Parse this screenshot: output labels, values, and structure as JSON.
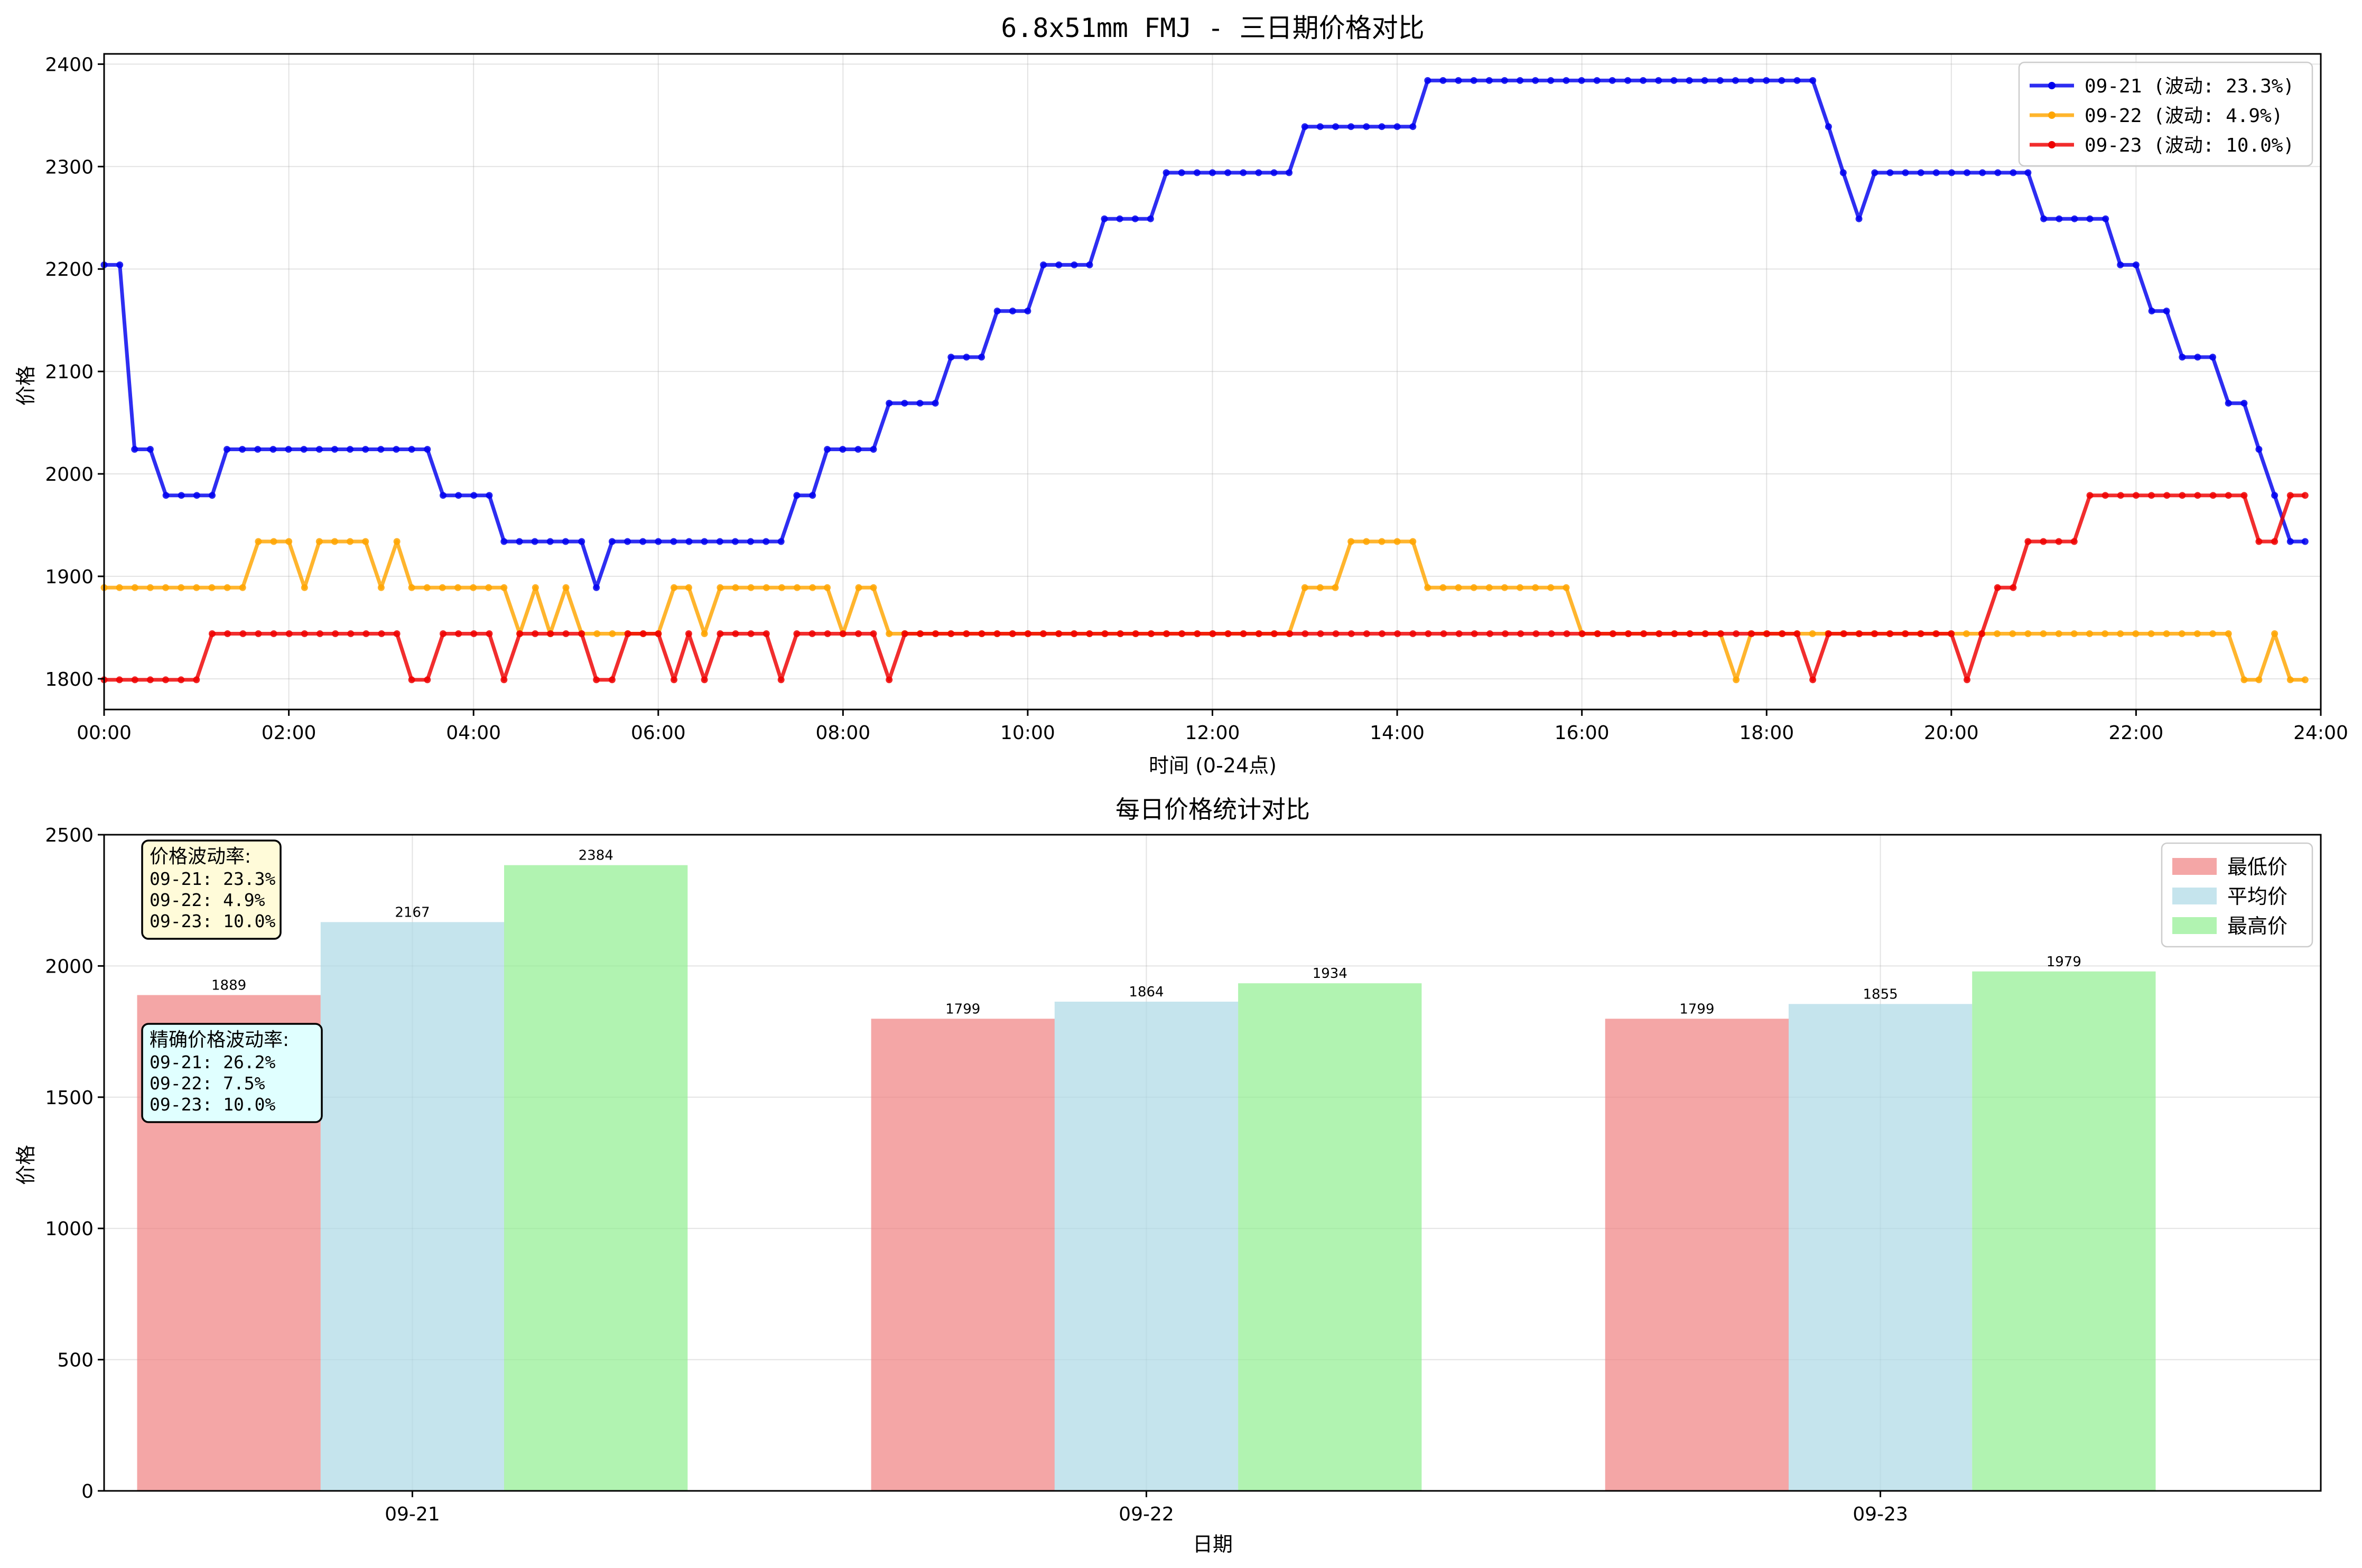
{
  "chart_data": [
    {
      "type": "line",
      "title": "6.8x51mm FMJ - 三日期价格对比",
      "xlabel": "时间 (0-24点)",
      "ylabel": "价格",
      "xlim": [
        0,
        24
      ],
      "ylim": [
        1770,
        2410
      ],
      "x_ticks": [
        "00:00",
        "02:00",
        "04:00",
        "06:00",
        "08:00",
        "10:00",
        "12:00",
        "14:00",
        "16:00",
        "18:00",
        "20:00",
        "22:00",
        "24:00"
      ],
      "y_ticks": [
        1800,
        1900,
        2000,
        2100,
        2200,
        2300,
        2400
      ],
      "grid": true,
      "legend_position": "top-right",
      "series": [
        {
          "name": "09-21 (波动: 23.3%)",
          "color": "#0000ee",
          "segments": [
            [
              0,
              2204
            ],
            [
              0.17,
              2204
            ],
            [
              0.33,
              2024
            ],
            [
              0.5,
              2024
            ],
            [
              0.67,
              1979
            ],
            [
              1.17,
              1979
            ],
            [
              1.33,
              2024
            ],
            [
              3.5,
              2024
            ],
            [
              3.67,
              1979
            ],
            [
              4.17,
              1979
            ],
            [
              4.33,
              1934
            ],
            [
              5.17,
              1934
            ],
            [
              5.33,
              1889
            ],
            [
              5.5,
              1934
            ],
            [
              7.33,
              1934
            ],
            [
              7.5,
              1979
            ],
            [
              7.67,
              1979
            ],
            [
              7.83,
              2024
            ],
            [
              8.33,
              2024
            ],
            [
              8.5,
              2069
            ],
            [
              9.0,
              2069
            ],
            [
              9.17,
              2114
            ],
            [
              9.5,
              2114
            ],
            [
              9.67,
              2159
            ],
            [
              10.0,
              2159
            ],
            [
              10.17,
              2204
            ],
            [
              10.67,
              2204
            ],
            [
              10.83,
              2249
            ],
            [
              11.33,
              2249
            ],
            [
              11.5,
              2294
            ],
            [
              12.83,
              2294
            ],
            [
              13.0,
              2339
            ],
            [
              14.17,
              2339
            ],
            [
              14.33,
              2384
            ],
            [
              18.5,
              2384
            ],
            [
              18.67,
              2339
            ],
            [
              18.83,
              2294
            ],
            [
              19.0,
              2249
            ],
            [
              19.17,
              2294
            ],
            [
              20.83,
              2294
            ],
            [
              21.0,
              2249
            ],
            [
              21.67,
              2249
            ],
            [
              21.83,
              2204
            ],
            [
              22.0,
              2204
            ],
            [
              22.17,
              2159
            ],
            [
              22.33,
              2159
            ],
            [
              22.5,
              2114
            ],
            [
              22.83,
              2114
            ],
            [
              23.0,
              2069
            ],
            [
              23.17,
              2069
            ],
            [
              23.33,
              2024
            ],
            [
              23.5,
              1979
            ],
            [
              23.67,
              1934
            ],
            [
              23.83,
              1934
            ]
          ]
        },
        {
          "name": "09-22 (波动: 4.9%)",
          "color": "#ffa500",
          "segments": [
            [
              0,
              1889
            ],
            [
              1.5,
              1889
            ],
            [
              1.67,
              1934
            ],
            [
              2.0,
              1934
            ],
            [
              2.17,
              1889
            ],
            [
              2.33,
              1934
            ],
            [
              2.83,
              1934
            ],
            [
              3.0,
              1889
            ],
            [
              3.17,
              1934
            ],
            [
              3.33,
              1889
            ],
            [
              4.33,
              1889
            ],
            [
              4.5,
              1844
            ],
            [
              4.67,
              1889
            ],
            [
              4.83,
              1844
            ],
            [
              5.0,
              1889
            ],
            [
              5.17,
              1844
            ],
            [
              6.0,
              1844
            ],
            [
              6.17,
              1889
            ],
            [
              6.33,
              1889
            ],
            [
              6.5,
              1844
            ],
            [
              6.67,
              1889
            ],
            [
              7.83,
              1889
            ],
            [
              8.0,
              1844
            ],
            [
              8.17,
              1889
            ],
            [
              8.33,
              1889
            ],
            [
              8.5,
              1844
            ],
            [
              12.83,
              1844
            ],
            [
              13.0,
              1889
            ],
            [
              13.33,
              1889
            ],
            [
              13.5,
              1934
            ],
            [
              14.17,
              1934
            ],
            [
              14.33,
              1889
            ],
            [
              15.83,
              1889
            ],
            [
              16.0,
              1844
            ],
            [
              17.5,
              1844
            ],
            [
              17.67,
              1799
            ],
            [
              17.83,
              1844
            ],
            [
              23.0,
              1844
            ],
            [
              23.17,
              1799
            ],
            [
              23.33,
              1799
            ],
            [
              23.5,
              1844
            ],
            [
              23.67,
              1799
            ],
            [
              23.83,
              1799
            ]
          ]
        },
        {
          "name": "09-23 (波动: 10.0%)",
          "color": "#ee0000",
          "segments": [
            [
              0,
              1799
            ],
            [
              1.0,
              1799
            ],
            [
              1.17,
              1844
            ],
            [
              3.17,
              1844
            ],
            [
              3.33,
              1799
            ],
            [
              3.5,
              1799
            ],
            [
              3.67,
              1844
            ],
            [
              4.17,
              1844
            ],
            [
              4.33,
              1799
            ],
            [
              4.5,
              1844
            ],
            [
              5.17,
              1844
            ],
            [
              5.33,
              1799
            ],
            [
              5.5,
              1799
            ],
            [
              5.67,
              1844
            ],
            [
              6.0,
              1844
            ],
            [
              6.17,
              1799
            ],
            [
              6.33,
              1844
            ],
            [
              6.5,
              1799
            ],
            [
              6.67,
              1844
            ],
            [
              7.17,
              1844
            ],
            [
              7.33,
              1799
            ],
            [
              7.5,
              1844
            ],
            [
              8.33,
              1844
            ],
            [
              8.5,
              1799
            ],
            [
              8.67,
              1844
            ],
            [
              18.33,
              1844
            ],
            [
              18.5,
              1799
            ],
            [
              18.67,
              1844
            ],
            [
              20.0,
              1844
            ],
            [
              20.17,
              1799
            ],
            [
              20.33,
              1844
            ],
            [
              20.5,
              1889
            ],
            [
              20.67,
              1889
            ],
            [
              20.83,
              1934
            ],
            [
              21.33,
              1934
            ],
            [
              21.5,
              1979
            ],
            [
              23.17,
              1979
            ],
            [
              23.33,
              1934
            ],
            [
              23.5,
              1934
            ],
            [
              23.67,
              1979
            ],
            [
              23.83,
              1979
            ]
          ]
        }
      ]
    },
    {
      "type": "bar",
      "title": "每日价格统计对比",
      "xlabel": "日期",
      "ylabel": "价格",
      "ylim": [
        0,
        2500
      ],
      "y_ticks": [
        0,
        500,
        1000,
        1500,
        2000,
        2500
      ],
      "grid": true,
      "legend_position": "top-right",
      "categories": [
        "09-21",
        "09-22",
        "09-23"
      ],
      "series": [
        {
          "name": "最低价",
          "color": "#f08080",
          "values": [
            1889,
            1799,
            1799
          ]
        },
        {
          "name": "平均价",
          "color": "#add8e6",
          "values": [
            2167,
            1864,
            1855
          ]
        },
        {
          "name": "最高价",
          "color": "#90ee90",
          "values": [
            2384,
            1934,
            1979
          ]
        }
      ],
      "annotations": [
        {
          "title": "价格波动率:",
          "lines": [
            "09-21: 23.3%",
            "09-22: 4.9%",
            "09-23: 10.0%"
          ],
          "bg": "#fffbd9"
        },
        {
          "title": "精确价格波动率:",
          "lines": [
            "09-21: 26.2%",
            "09-22: 7.5%",
            "09-23: 10.0%"
          ],
          "bg": "#e0ffff"
        }
      ]
    }
  ]
}
